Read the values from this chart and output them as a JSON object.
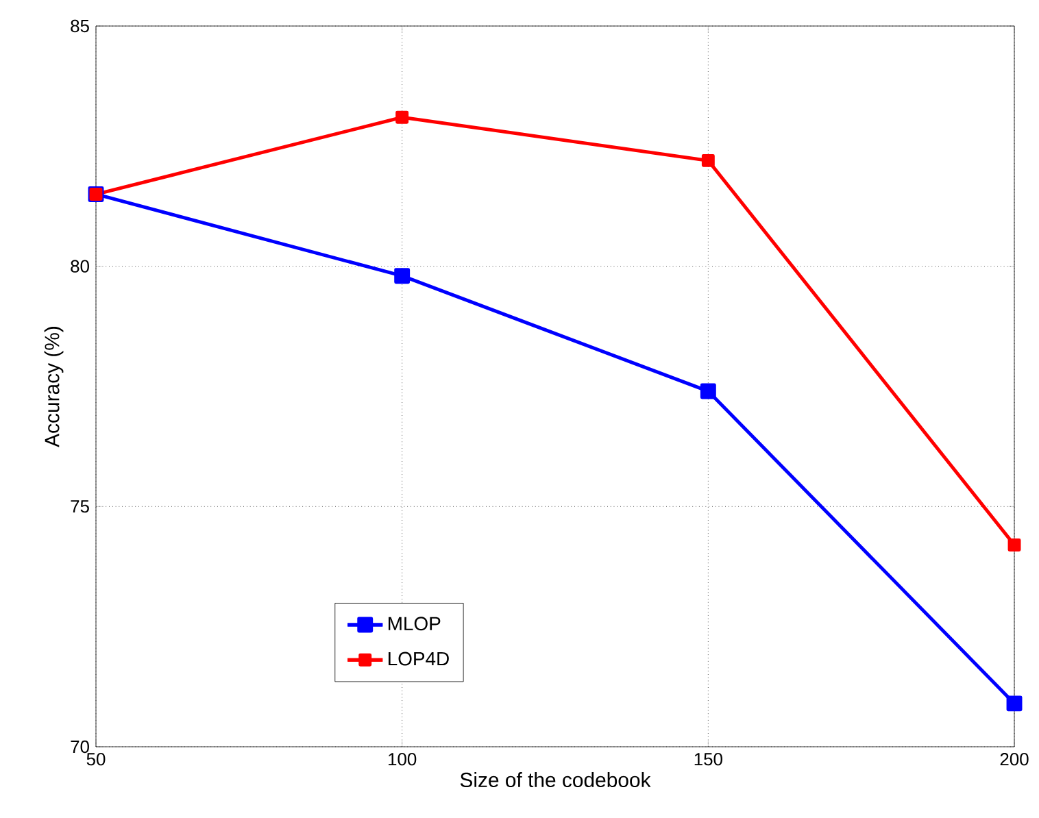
{
  "chart_data": {
    "type": "line",
    "xlabel": "Size of the codebook",
    "ylabel": "Accuracy (%)",
    "x": [
      50,
      100,
      150,
      200
    ],
    "series": [
      {
        "name": "MLOP",
        "color": "#0000ff",
        "values": [
          81.5,
          79.8,
          77.4,
          70.9
        ]
      },
      {
        "name": "LOP4D",
        "color": "#ff0000",
        "values": [
          81.5,
          83.1,
          82.2,
          74.2
        ]
      }
    ],
    "xlim": [
      50,
      200
    ],
    "xticks": [
      50,
      100,
      150,
      200
    ],
    "ylim": [
      70,
      85
    ],
    "yticks": [
      70,
      75,
      80,
      85
    ],
    "grid": true,
    "legend": "bottom",
    "marker": "square",
    "line_style": "solid"
  }
}
